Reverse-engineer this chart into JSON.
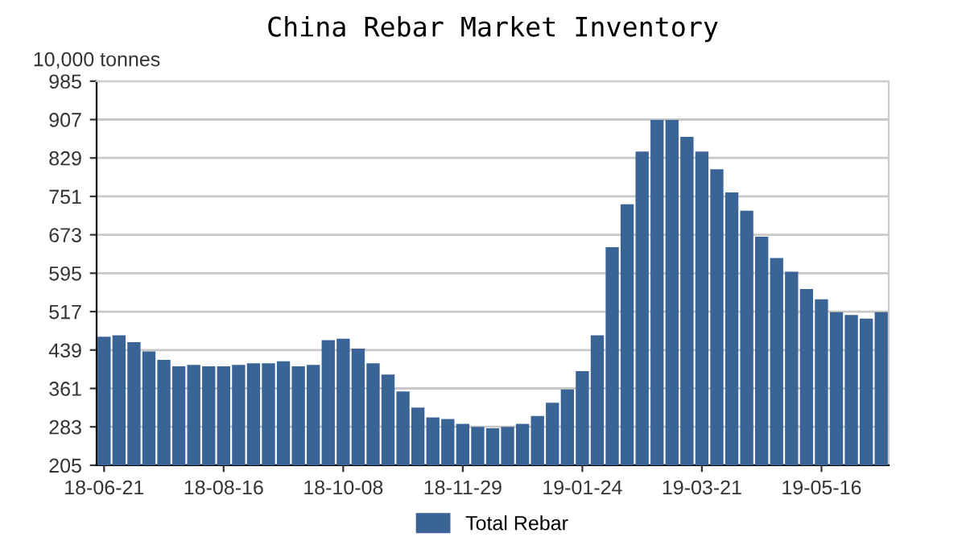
{
  "chart_data": {
    "type": "bar",
    "title": "China Rebar Market Inventory",
    "ylabel": "10,000 tonnes",
    "categories": [
      "18-06-21",
      null,
      null,
      null,
      null,
      null,
      null,
      null,
      "18-08-16",
      null,
      null,
      null,
      null,
      null,
      null,
      null,
      "18-10-08",
      null,
      null,
      null,
      null,
      null,
      null,
      null,
      "18-11-29",
      null,
      null,
      null,
      null,
      null,
      null,
      null,
      "19-01-24",
      null,
      null,
      null,
      null,
      null,
      null,
      null,
      "19-03-21",
      null,
      null,
      null,
      null,
      null,
      null,
      null,
      "19-05-16",
      null,
      null,
      null,
      null
    ],
    "series": [
      {
        "name": "Total Rebar",
        "color": "#3a6496",
        "values": [
          466,
          469,
          455,
          436,
          419,
          406,
          409,
          406,
          406,
          409,
          412,
          412,
          416,
          406,
          409,
          459,
          462,
          442,
          412,
          389,
          355,
          322,
          302,
          299,
          289,
          283,
          280,
          283,
          289,
          305,
          332,
          359,
          396,
          469,
          648,
          735,
          842,
          906,
          906,
          872,
          842,
          806,
          759,
          722,
          669,
          626,
          598,
          563,
          542,
          516,
          510,
          503,
          516
        ]
      }
    ],
    "ylim": [
      205,
      985
    ],
    "yticks": [
      205,
      283,
      361,
      439,
      517,
      595,
      673,
      751,
      829,
      907,
      985
    ],
    "grid": "y",
    "legend": "bottom"
  }
}
